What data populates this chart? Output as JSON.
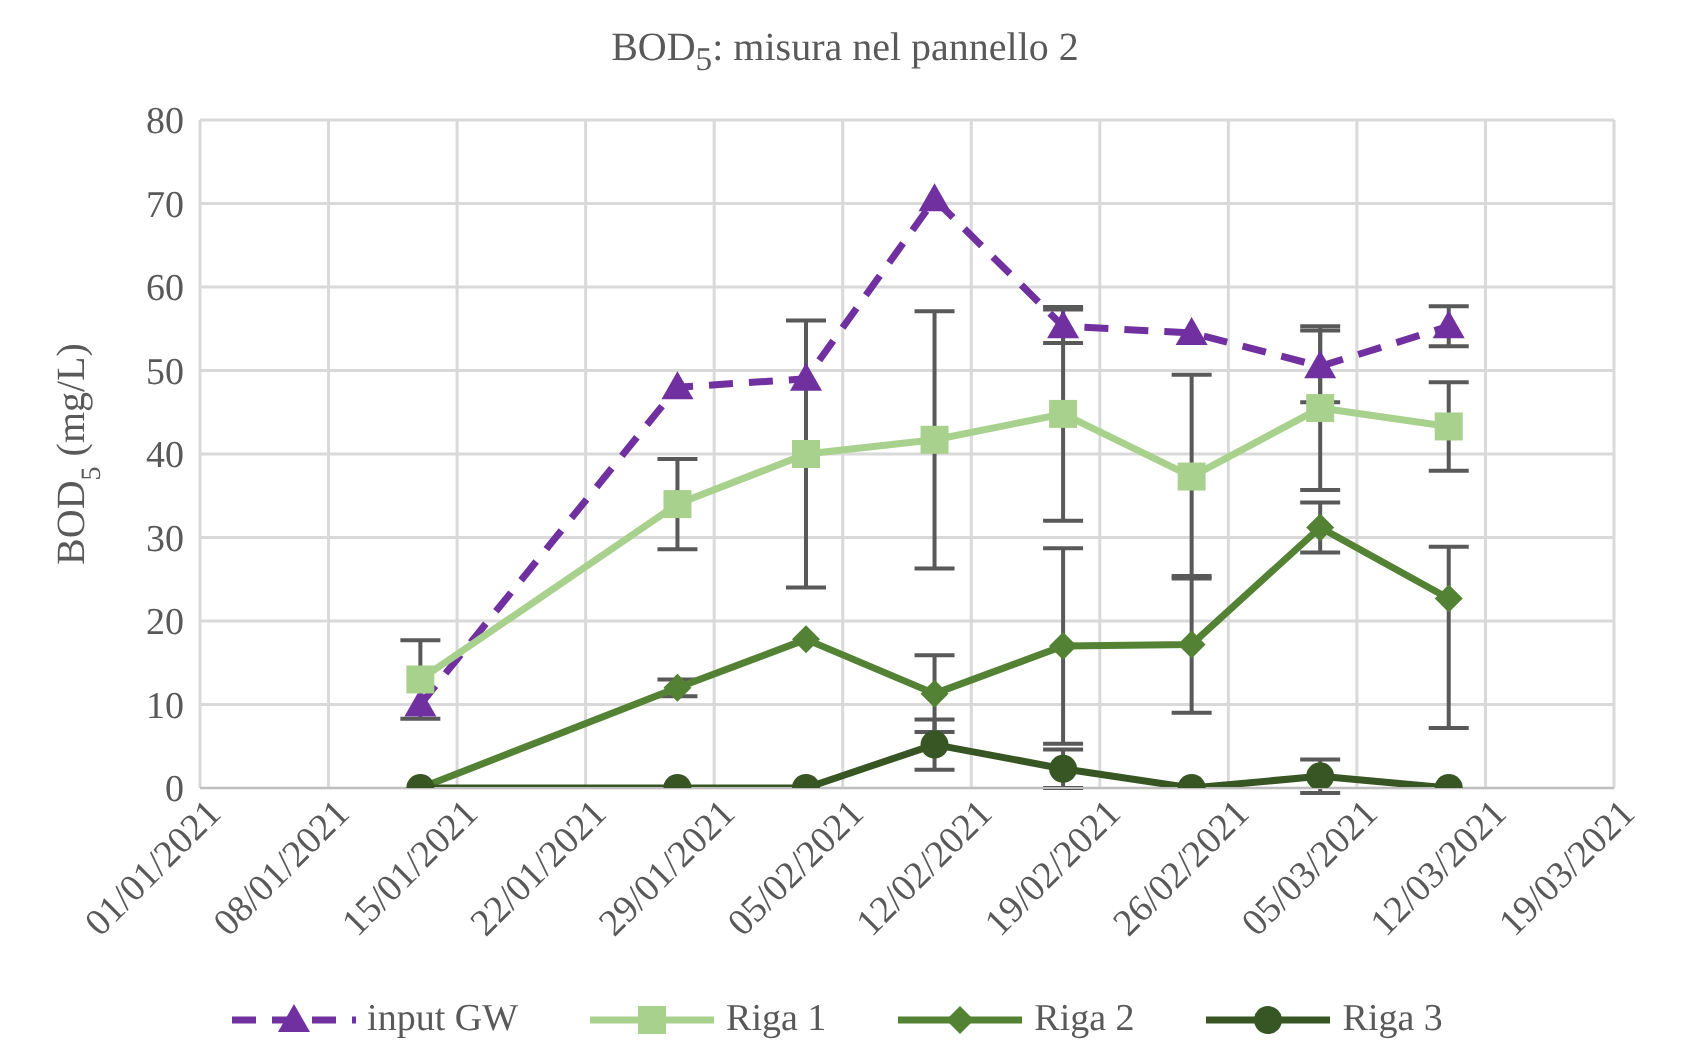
{
  "chart_data": {
    "type": "line",
    "title": "BOD$_{5}$: misura nel pannello 2",
    "ylabel": "BOD$_{5}$ (mg/L)",
    "x": [
      "2021-01-13",
      "2021-01-27",
      "2021-02-03",
      "2021-02-10",
      "2021-02-17",
      "2021-02-24",
      "2021-03-03",
      "2021-03-10"
    ],
    "series": [
      {
        "name": "input GW",
        "color": "#7030a0",
        "marker": "triangle",
        "line_style": "dashed",
        "values": [
          10,
          48,
          49,
          70.5,
          55.3,
          54.5,
          50.5,
          55.3
        ],
        "errors": [
          null,
          null,
          null,
          null,
          2,
          null,
          4.3,
          2.4
        ]
      },
      {
        "name": "Riga 1",
        "color": "#a9d18e",
        "marker": "square",
        "values": [
          13,
          34,
          40,
          41.7,
          44.8,
          37.3,
          45.5,
          43.3
        ],
        "errors": [
          4.7,
          5.4,
          16,
          15.4,
          12.8,
          12.2,
          9.8,
          5.3
        ]
      },
      {
        "name": "Riga 2",
        "color": "#548235",
        "marker": "diamond",
        "values": [
          0,
          12,
          17.8,
          11.3,
          17,
          17.2,
          31.2,
          22.7
        ],
        "errors": [
          null,
          1,
          null,
          4.6,
          11.7,
          8.2,
          3,
          [
            7.2,
            28.9
          ]
        ]
      },
      {
        "name": "Riga 3",
        "color": "#375623",
        "marker": "circle",
        "values": [
          0,
          0,
          0,
          5.2,
          2.3,
          0,
          1.4,
          0
        ],
        "errors": [
          null,
          null,
          null,
          3,
          2.3,
          null,
          2,
          null
        ]
      }
    ],
    "xlim": [
      "2021-01-01",
      "2021-03-19"
    ],
    "xticks": [
      {
        "value": "2021-01-01",
        "label": "01/01/2021"
      },
      {
        "value": "2021-01-08",
        "label": "08/01/2021"
      },
      {
        "value": "2021-01-15",
        "label": "15/01/2021"
      },
      {
        "value": "2021-01-22",
        "label": "22/01/2021"
      },
      {
        "value": "2021-01-29",
        "label": "29/01/2021"
      },
      {
        "value": "2021-02-05",
        "label": "05/02/2021"
      },
      {
        "value": "2021-02-12",
        "label": "12/02/2021"
      },
      {
        "value": "2021-02-19",
        "label": "19/02/2021"
      },
      {
        "value": "2021-02-26",
        "label": "26/02/2021"
      },
      {
        "value": "2021-03-05",
        "label": "05/03/2021"
      },
      {
        "value": "2021-03-12",
        "label": "12/03/2021"
      },
      {
        "value": "2021-03-19",
        "label": "19/03/2021"
      }
    ],
    "ylim": [
      0,
      80
    ],
    "yticks": [
      0,
      10,
      20,
      30,
      40,
      50,
      60,
      70,
      80
    ],
    "grid": true,
    "legend": "bottom"
  }
}
